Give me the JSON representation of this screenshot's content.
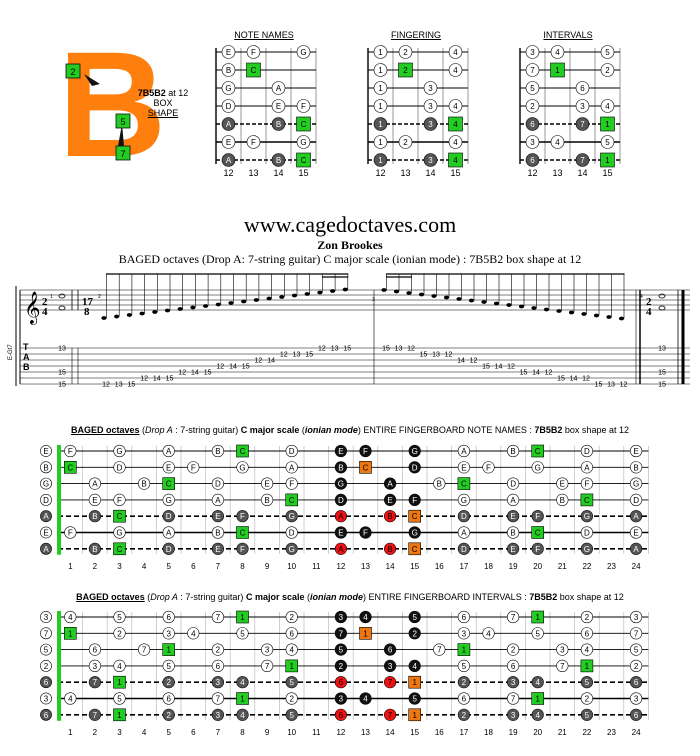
{
  "logo": {
    "letter": "B",
    "box_top": "2",
    "box_mid": "5",
    "box_bot": "7"
  },
  "shape_label": {
    "name": "7B5B2",
    "suffix": " at 12",
    "line2": "BOX",
    "line3": "SHAPE"
  },
  "mini_titles": [
    "NOTE NAMES",
    "FINGERING",
    "INTERVALS"
  ],
  "mini_frets": [
    "12",
    "13",
    "14",
    "15"
  ],
  "mini_boards": [
    [
      [
        "E",
        "F",
        "",
        "G"
      ],
      [
        "B",
        "C",
        "",
        ""
      ],
      [
        "G",
        "",
        "A",
        ""
      ],
      [
        "D",
        "",
        "E",
        "F"
      ],
      [
        "A",
        "",
        "B",
        "C"
      ],
      [
        "E",
        "F",
        "",
        "G"
      ],
      [
        "A",
        "",
        "B",
        "C"
      ]
    ],
    [
      [
        "1",
        "2",
        "",
        "4"
      ],
      [
        "1",
        "2",
        "",
        "4"
      ],
      [
        "1",
        "",
        "3",
        ""
      ],
      [
        "1",
        "",
        "3",
        "4"
      ],
      [
        "1",
        "",
        "3",
        "4"
      ],
      [
        "1",
        "2",
        "",
        "4"
      ],
      [
        "1",
        "",
        "3",
        "4"
      ]
    ],
    [
      [
        "3",
        "4",
        "",
        "5"
      ],
      [
        "7",
        "1",
        "",
        "2"
      ],
      [
        "5",
        "",
        "6",
        ""
      ],
      [
        "2",
        "",
        "3",
        "4"
      ],
      [
        "6",
        "",
        "7",
        "1"
      ],
      [
        "3",
        "4",
        "",
        "5"
      ],
      [
        "6",
        "",
        "7",
        "1"
      ]
    ]
  ],
  "mini_highlight": [
    [
      1,
      1
    ],
    [
      4,
      3
    ],
    [
      6,
      3
    ]
  ],
  "header": {
    "url": "www.cagedoctaves.com",
    "author": "Zon Brookes",
    "subtitle": "BAGED octaves (Drop A: 7-string guitar) C major scale (ionian mode) : 7B5B2 box shape at 12"
  },
  "tab": {
    "time_sig_a": [
      "2",
      "4"
    ],
    "time_sig_b": [
      "17",
      "8"
    ],
    "string_label": "E-Gt7",
    "clef_tab": [
      "T",
      "A",
      "B"
    ],
    "measure_nums": [
      "1",
      "2",
      "3",
      "4"
    ],
    "chord_left": [
      "13",
      "15",
      "15"
    ],
    "chord_right": [
      "13",
      "15",
      "15"
    ],
    "run_up": [
      "12",
      "13",
      "15",
      "12",
      "14",
      "15",
      "12",
      "14",
      "15",
      "12",
      "14",
      "15",
      "12",
      "14",
      "12",
      "13",
      "15",
      "12",
      "13",
      "15"
    ],
    "run_down": [
      "15",
      "13",
      "12",
      "15",
      "13",
      "12",
      "14",
      "12",
      "15",
      "14",
      "12",
      "15",
      "14",
      "12",
      "15",
      "14",
      "12",
      "15",
      "13",
      "12"
    ]
  },
  "board1": {
    "title_pre": "BAGED octaves",
    "title_drop": "Drop A",
    "title_mid": ": 7-string guitar)",
    "title_scale": "C major scale",
    "title_mode": "ionian mode",
    "title_post": "ENTIRE FINGERBOARD  NOTE NAMES :",
    "title_shape": "7B5B2",
    "title_end": "box shape at 12"
  },
  "board2": {
    "title_pre": "BAGED octaves",
    "title_drop": "Drop A",
    "title_mid": ": 7-string guitar)",
    "title_scale": "C major scale",
    "title_mode": "ionian mode",
    "title_post": "ENTIRE FINGERBOARD  INTERVALS :",
    "title_shape": "7B5B2",
    "title_end": "box shape at 12"
  },
  "fret_numbers": [
    "1",
    "2",
    "3",
    "4",
    "5",
    "6",
    "7",
    "8",
    "9",
    "10",
    "11",
    "12",
    "13",
    "14",
    "15",
    "16",
    "17",
    "18",
    "19",
    "20",
    "21",
    "22",
    "23",
    "24"
  ],
  "open_notes": [
    "E",
    "B",
    "G",
    "D",
    "A",
    "E",
    "A"
  ],
  "open_intervals": [
    "3",
    "7",
    "5",
    "2",
    "6",
    "3",
    "6"
  ],
  "notes": [
    [
      "E",
      "F",
      "",
      "G",
      "",
      "A",
      "",
      "B",
      "C",
      "",
      "D",
      "",
      "E",
      "F",
      "",
      "G",
      "",
      "A",
      "",
      "B",
      "C",
      "",
      "D",
      "",
      "E"
    ],
    [
      "B",
      "C",
      "",
      "D",
      "",
      "E",
      "F",
      "",
      "G",
      "",
      "A",
      "",
      "B",
      "C",
      "",
      "D",
      "",
      "E",
      "F",
      "",
      "G",
      "",
      "A",
      "",
      "B"
    ],
    [
      "G",
      "",
      "A",
      "",
      "B",
      "C",
      "",
      "D",
      "",
      "E",
      "F",
      "",
      "G",
      "",
      "A",
      "",
      "B",
      "C",
      "",
      "D",
      "",
      "E",
      "F",
      "",
      "G"
    ],
    [
      "D",
      "",
      "E",
      "F",
      "",
      "G",
      "",
      "A",
      "",
      "B",
      "C",
      "",
      "D",
      "",
      "E",
      "F",
      "",
      "G",
      "",
      "A",
      "",
      "B",
      "C",
      "",
      "D"
    ],
    [
      "A",
      "",
      "B",
      "C",
      "",
      "D",
      "",
      "E",
      "F",
      "",
      "G",
      "",
      "A",
      "",
      "B",
      "C",
      "",
      "D",
      "",
      "E",
      "F",
      "",
      "G",
      "",
      "A"
    ],
    [
      "E",
      "F",
      "",
      "G",
      "",
      "A",
      "",
      "B",
      "C",
      "",
      "D",
      "",
      "E",
      "F",
      "",
      "G",
      "",
      "A",
      "",
      "B",
      "C",
      "",
      "D",
      "",
      "E"
    ],
    [
      "A",
      "",
      "B",
      "C",
      "",
      "D",
      "",
      "E",
      "F",
      "",
      "G",
      "",
      "A",
      "",
      "B",
      "C",
      "",
      "D",
      "",
      "E",
      "F",
      "",
      "G",
      "",
      "A"
    ]
  ],
  "intervals": [
    [
      "3",
      "4",
      "",
      "5",
      "",
      "6",
      "",
      "7",
      "1",
      "",
      "2",
      "",
      "3",
      "4",
      "",
      "5",
      "",
      "6",
      "",
      "7",
      "1",
      "",
      "2",
      "",
      "3"
    ],
    [
      "7",
      "1",
      "",
      "2",
      "",
      "3",
      "4",
      "",
      "5",
      "",
      "6",
      "",
      "7",
      "1",
      "",
      "2",
      "",
      "3",
      "4",
      "",
      "5",
      "",
      "6",
      "",
      "7"
    ],
    [
      "5",
      "",
      "6",
      "",
      "7",
      "1",
      "",
      "2",
      "",
      "3",
      "4",
      "",
      "5",
      "",
      "6",
      "",
      "7",
      "1",
      "",
      "2",
      "",
      "3",
      "4",
      "",
      "5"
    ],
    [
      "2",
      "",
      "3",
      "4",
      "",
      "5",
      "",
      "6",
      "",
      "7",
      "1",
      "",
      "2",
      "",
      "3",
      "4",
      "",
      "5",
      "",
      "6",
      "",
      "7",
      "1",
      "",
      "2"
    ],
    [
      "6",
      "",
      "7",
      "1",
      "",
      "2",
      "",
      "3",
      "4",
      "",
      "5",
      "",
      "6",
      "",
      "7",
      "1",
      "",
      "2",
      "",
      "3",
      "4",
      "",
      "5",
      "",
      "6"
    ],
    [
      "3",
      "4",
      "",
      "5",
      "",
      "6",
      "",
      "7",
      "1",
      "",
      "2",
      "",
      "3",
      "4",
      "",
      "5",
      "",
      "6",
      "",
      "7",
      "1",
      "",
      "2",
      "",
      "3"
    ],
    [
      "6",
      "",
      "7",
      "1",
      "",
      "2",
      "",
      "3",
      "4",
      "",
      "5",
      "",
      "6",
      "",
      "7",
      "1",
      "",
      "2",
      "",
      "3",
      "4",
      "",
      "5",
      "",
      "6"
    ]
  ],
  "colors": {
    "root": "#22cc22",
    "orange": "#ee7711",
    "red": "#ee1111",
    "black": "#111111",
    "grey": "#555555",
    "logo": "#ff7f0e"
  }
}
